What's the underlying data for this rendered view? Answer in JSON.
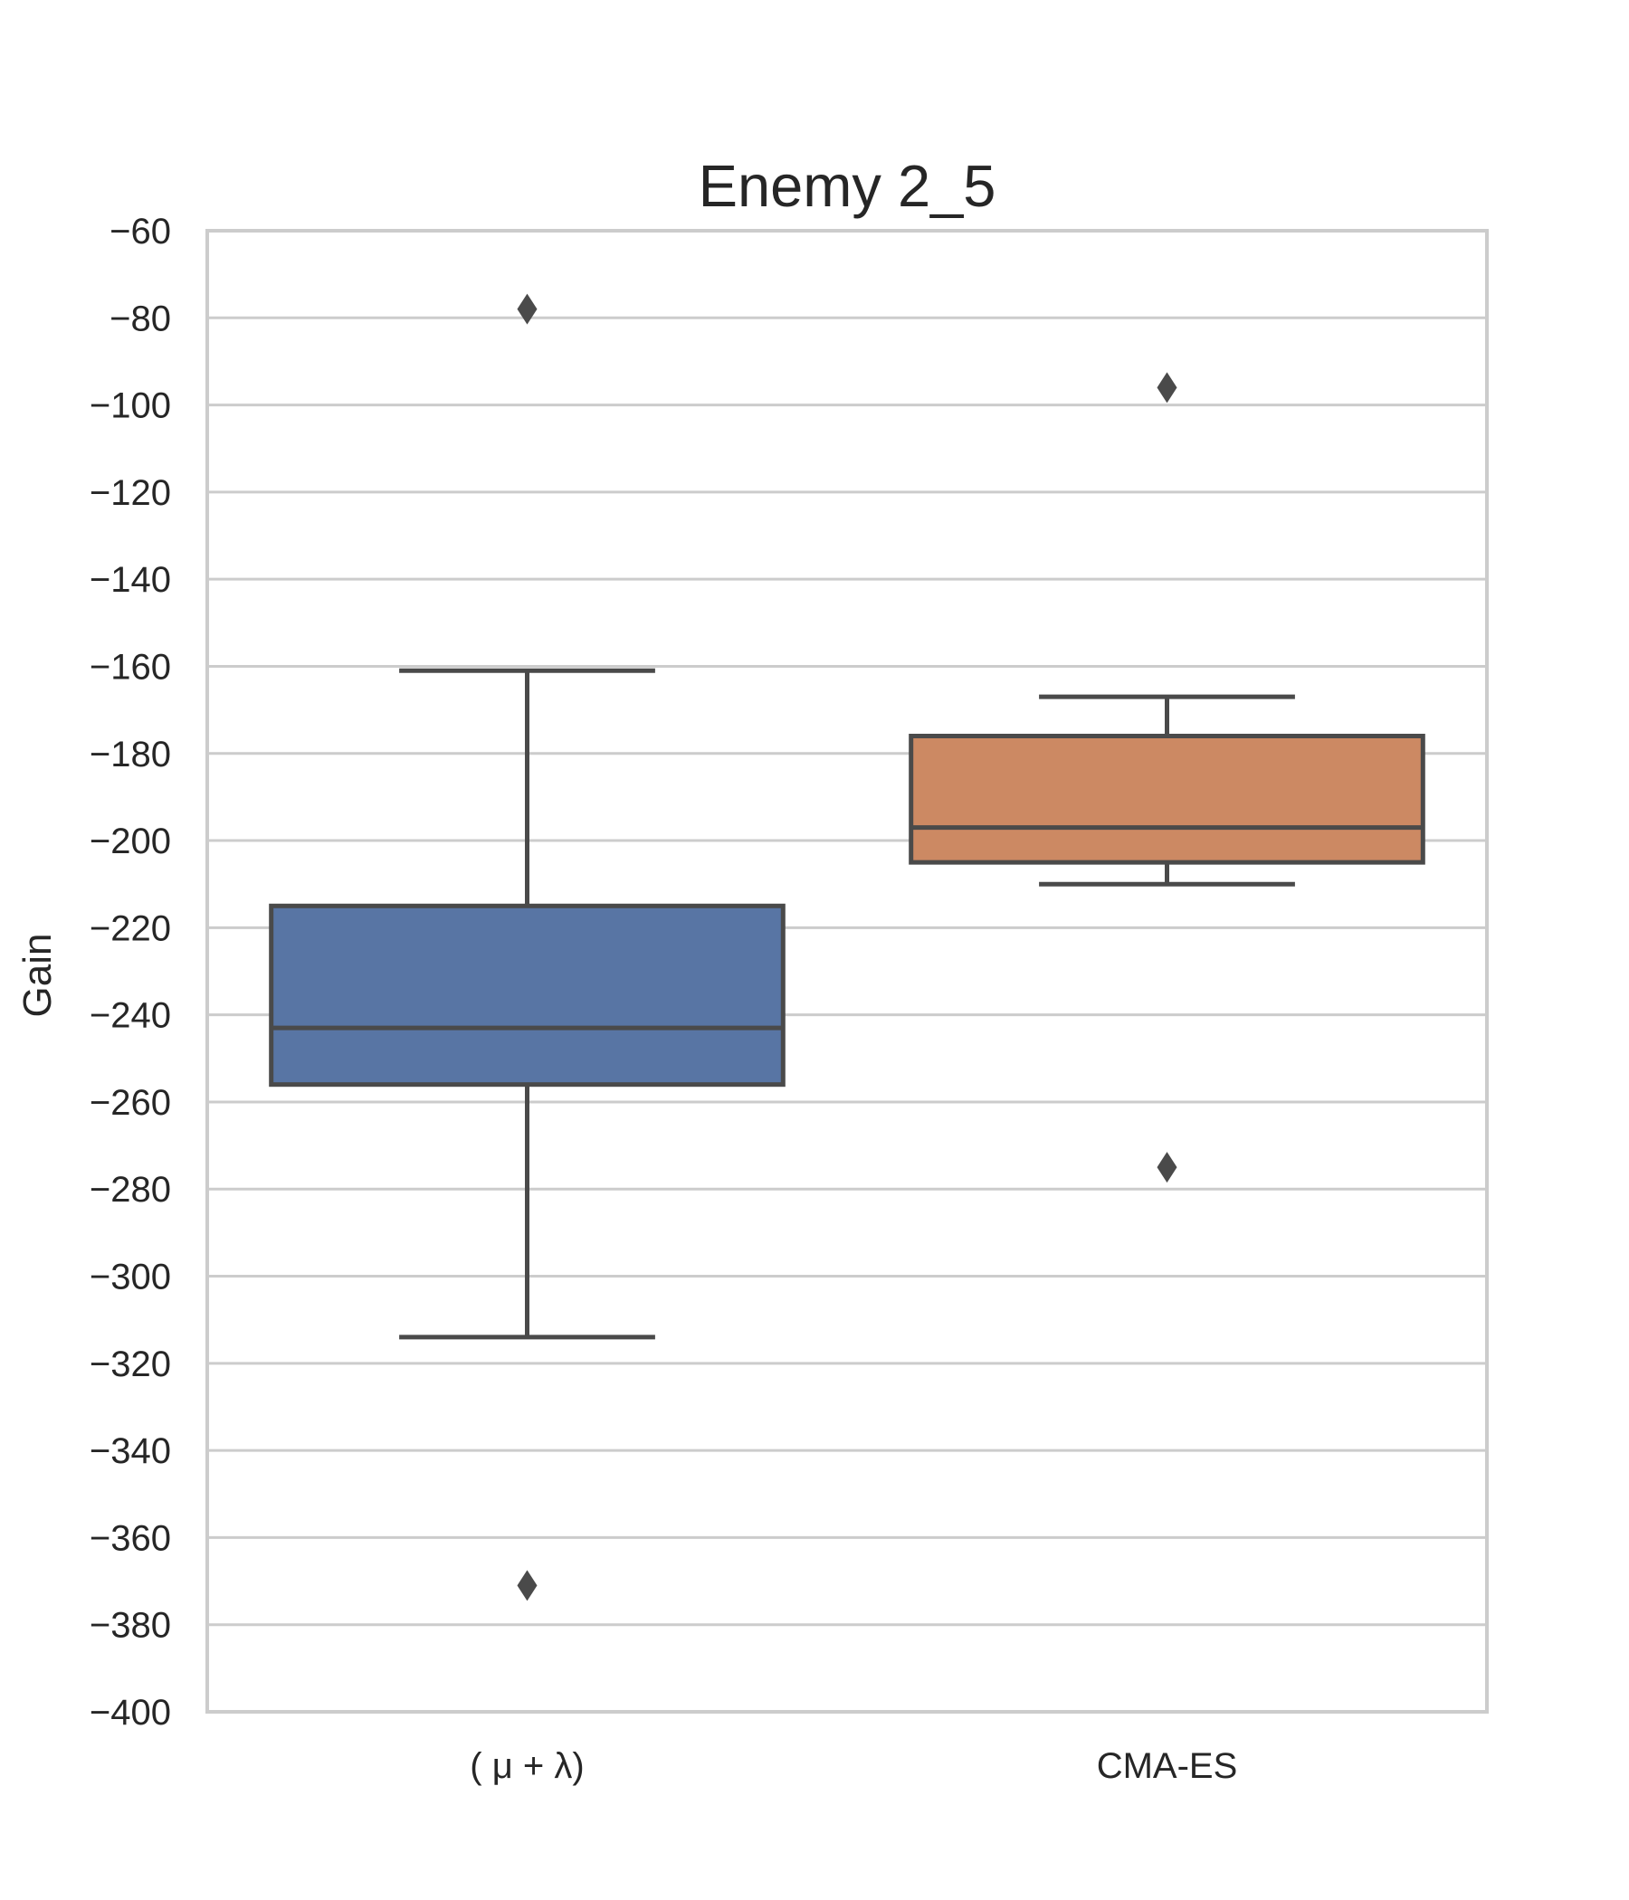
{
  "chart_data": {
    "type": "box",
    "title": "Enemy 2_5",
    "xlabel": "",
    "ylabel": "Gain",
    "ylim": [
      -400,
      -60
    ],
    "yticks": [
      -60,
      -80,
      -100,
      -120,
      -140,
      -160,
      -180,
      -200,
      -220,
      -240,
      -260,
      -280,
      -300,
      -320,
      -340,
      -360,
      -380,
      -400
    ],
    "ytick_labels": [
      "−60",
      "−80",
      "−100",
      "−120",
      "−140",
      "−160",
      "−180",
      "−200",
      "−220",
      "−240",
      "−260",
      "−280",
      "−300",
      "−320",
      "−340",
      "−360",
      "−380",
      "−400"
    ],
    "grid": true,
    "categories": [
      "( μ + λ)",
      "CMA-ES"
    ],
    "boxes": [
      {
        "category": "( μ + λ)",
        "color": "#5875a4",
        "whisker_low": -314,
        "q1": -256,
        "median": -243,
        "q3": -215,
        "whisker_high": -161,
        "outliers": [
          -78,
          -371
        ]
      },
      {
        "category": "CMA-ES",
        "color": "#cc8963",
        "whisker_low": -210,
        "q1": -205,
        "median": -197,
        "q3": -176,
        "whisker_high": -167,
        "outliers": [
          -96,
          -275
        ]
      }
    ]
  }
}
